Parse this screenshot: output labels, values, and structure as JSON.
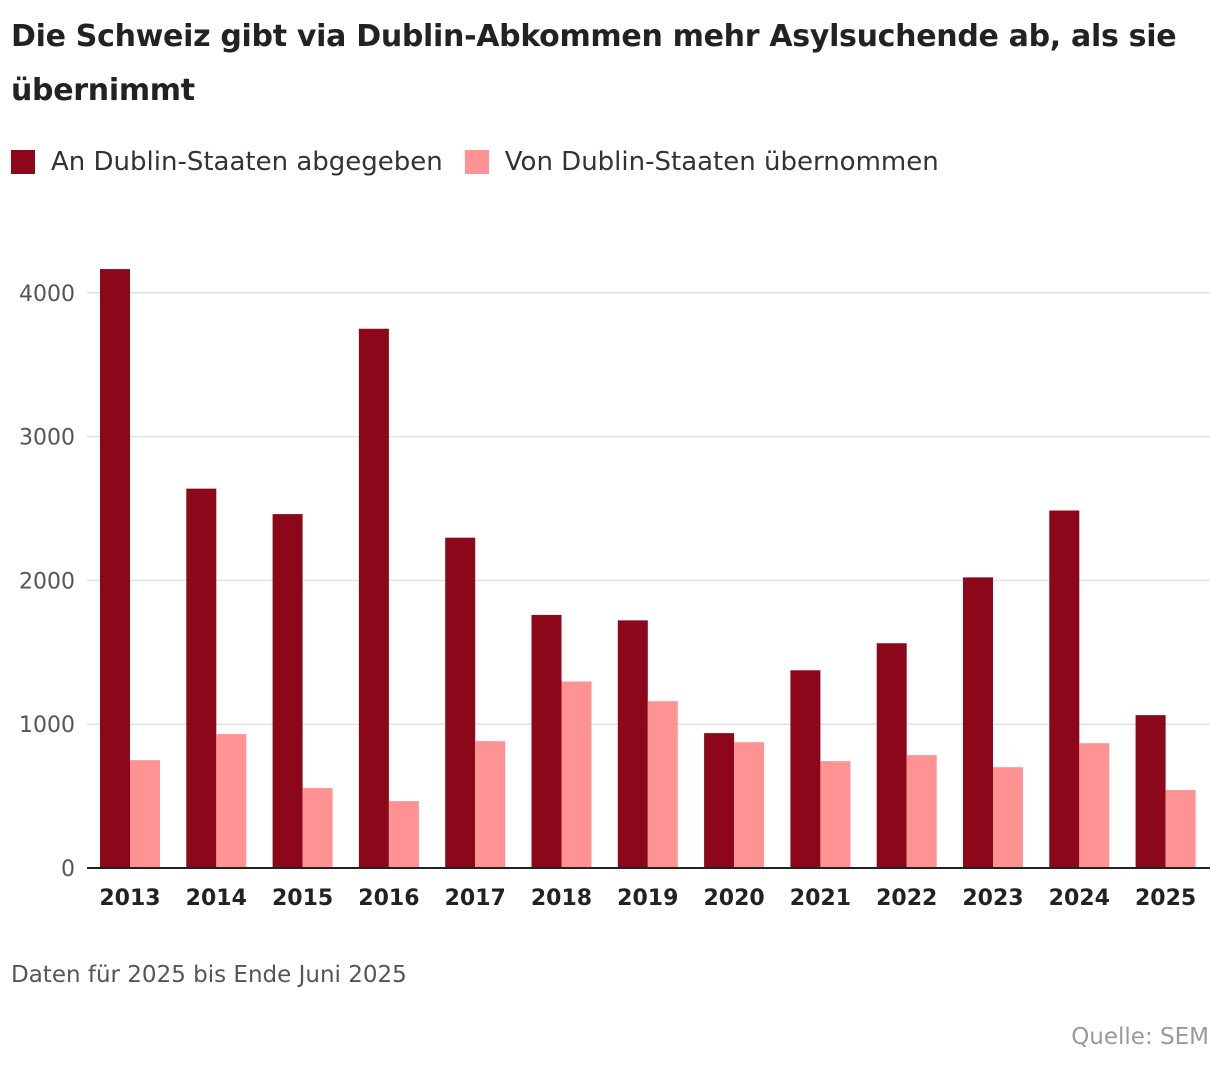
{
  "title": "Die Schweiz gibt via Dublin-Abkommen mehr Asylsuchende ab, als sie übernimmt",
  "legend": [
    {
      "label": "An Dublin-Staaten abgegeben",
      "color": "#8c0719"
    },
    {
      "label": "Von Dublin-Staaten übernommen",
      "color": "#ff9293"
    }
  ],
  "note": "Daten für 2025 bis Ende Juni 2025",
  "source": "Quelle: SEM",
  "chart_data": {
    "type": "bar",
    "title": "Die Schweiz gibt via Dublin-Abkommen mehr Asylsuchende ab, als sie übernimmt",
    "xlabel": "",
    "ylabel": "",
    "ylim": [
      0,
      4200
    ],
    "yticks": [
      0,
      1000,
      2000,
      3000,
      4000
    ],
    "grid": true,
    "legend_position": "top-left",
    "categories": [
      "2013",
      "2014",
      "2015",
      "2016",
      "2017",
      "2018",
      "2019",
      "2020",
      "2021",
      "2022",
      "2023",
      "2024",
      "2025"
    ],
    "series": [
      {
        "name": "An Dublin-Staaten abgegeben",
        "color": "#8c0719",
        "values": [
          4165,
          2638,
          2461,
          3750,
          2297,
          1760,
          1722,
          938,
          1375,
          1563,
          2021,
          2486,
          1063
        ]
      },
      {
        "name": "Von Dublin-Staaten übernommen",
        "color": "#ff9293",
        "values": [
          750,
          931,
          556,
          465,
          882,
          1297,
          1160,
          875,
          743,
          785,
          701,
          868,
          542
        ]
      }
    ]
  }
}
